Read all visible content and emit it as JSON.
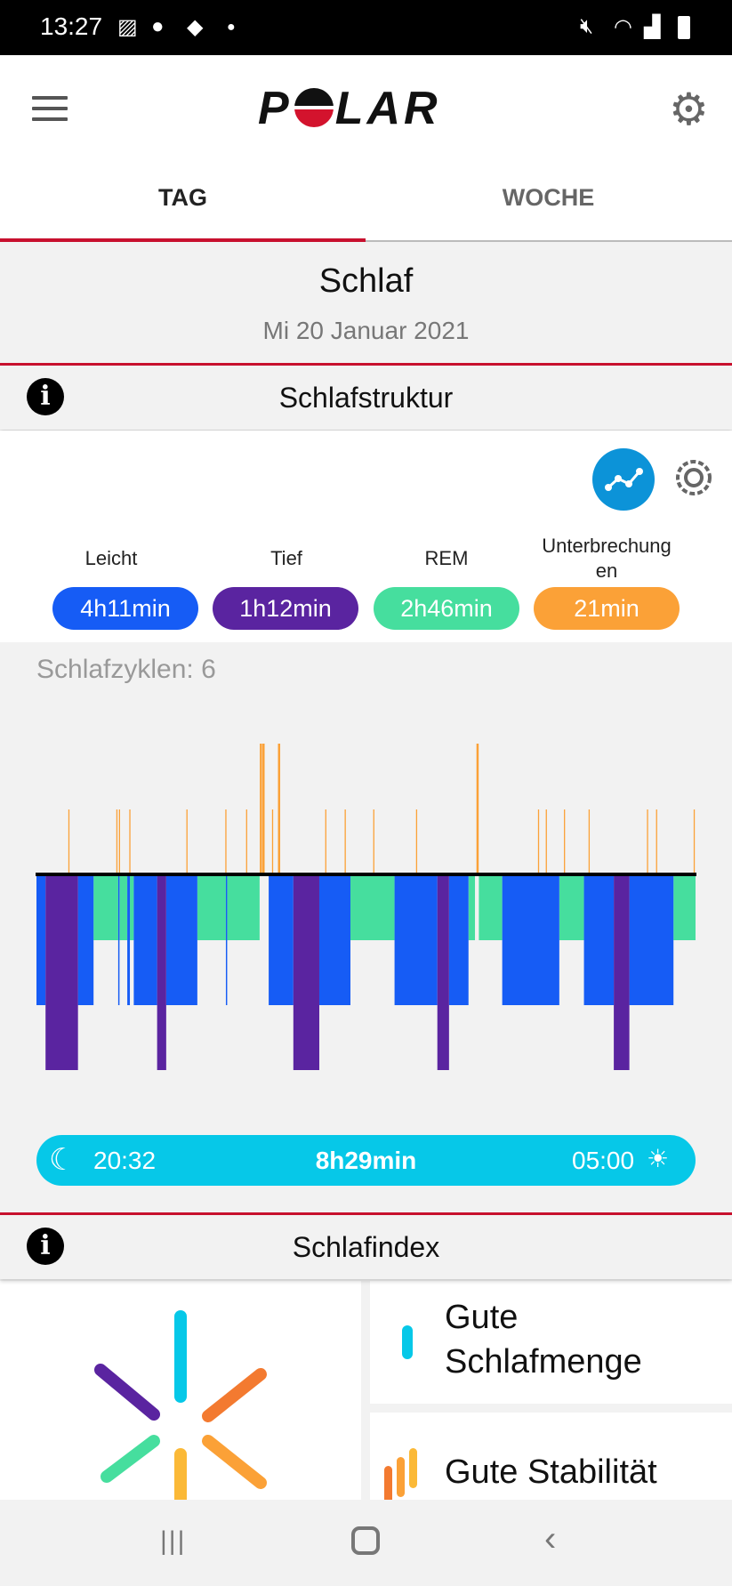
{
  "status_bar": {
    "time": "13:27",
    "icons": [
      "image-icon",
      "app-icon",
      "leaf-icon",
      "dot-icon",
      "mute-icon",
      "wifi-icon",
      "signal-icon",
      "battery-icon"
    ]
  },
  "header": {
    "logo": "POLAR",
    "menu_icon": "menu-icon",
    "settings_icon": "gear-icon"
  },
  "tabs": [
    {
      "label": "TAG",
      "active": true
    },
    {
      "label": "WOCHE",
      "active": false
    }
  ],
  "page": {
    "title": "Schlaf",
    "date": "Mi 20 Januar 2021"
  },
  "structure": {
    "title": "Schlafstruktur",
    "legend": [
      {
        "label": "Leicht",
        "value": "4h11min",
        "color": "#165cf5"
      },
      {
        "label": "Tief",
        "value": "1h12min",
        "color": "#5a24a0"
      },
      {
        "label": "REM",
        "value": "2h46min",
        "color": "#46de9e"
      },
      {
        "label": "Unterbrechungen",
        "value": "21min",
        "color": "#fba137"
      }
    ],
    "cycles": "Schlafzyklen: 6",
    "sleep_start": "20:32",
    "sleep_end": "05:00",
    "duration": "8h29min"
  },
  "chart_data": {
    "type": "hypnogram",
    "x_range": [
      "20:32",
      "05:00"
    ],
    "segments": [
      [
        "light",
        "20:32",
        "20:39"
      ],
      [
        "deep",
        "20:39",
        "21:04"
      ],
      [
        "light",
        "21:04",
        "21:16"
      ],
      [
        "rem",
        "21:16",
        "21:35"
      ],
      [
        "light",
        "21:35",
        "21:36"
      ],
      [
        "rem",
        "21:36",
        "21:42"
      ],
      [
        "light",
        "21:42",
        "21:44"
      ],
      [
        "rem",
        "21:44",
        "21:47"
      ],
      [
        "light",
        "21:47",
        "22:05"
      ],
      [
        "deep",
        "22:05",
        "22:12"
      ],
      [
        "light",
        "22:12",
        "22:36"
      ],
      [
        "rem",
        "22:36",
        "22:58"
      ],
      [
        "light",
        "22:58",
        "22:59"
      ],
      [
        "rem",
        "22:59",
        "23:24"
      ],
      [
        "light",
        "23:31",
        "23:50"
      ],
      [
        "deep",
        "23:50",
        "00:10"
      ],
      [
        "light",
        "00:10",
        "00:34"
      ],
      [
        "rem",
        "00:34",
        "01:08"
      ],
      [
        "light",
        "01:08",
        "01:41"
      ],
      [
        "deep",
        "01:41",
        "01:50"
      ],
      [
        "light",
        "01:50",
        "02:05"
      ],
      [
        "rem",
        "02:05",
        "02:10"
      ],
      [
        "rem",
        "02:13",
        "02:31"
      ],
      [
        "light",
        "02:31",
        "03:15"
      ],
      [
        "rem",
        "03:15",
        "03:34"
      ],
      [
        "light",
        "03:34",
        "03:57"
      ],
      [
        "deep",
        "03:57",
        "04:09"
      ],
      [
        "light",
        "04:09",
        "04:43"
      ],
      [
        "rem",
        "04:43",
        "05:00"
      ]
    ],
    "interruptions": [
      [
        "20:57",
        false
      ],
      [
        "21:34",
        false
      ],
      [
        "21:36",
        false
      ],
      [
        "21:44",
        false
      ],
      [
        "22:28",
        false
      ],
      [
        "22:58",
        false
      ],
      [
        "23:14",
        false
      ],
      [
        "23:25",
        true
      ],
      [
        "23:27",
        true
      ],
      [
        "23:34",
        false
      ],
      [
        "23:39",
        true
      ],
      [
        "00:15",
        false
      ],
      [
        "00:30",
        false
      ],
      [
        "00:52",
        false
      ],
      [
        "01:25",
        false
      ],
      [
        "02:12",
        true
      ],
      [
        "02:59",
        false
      ],
      [
        "03:05",
        false
      ],
      [
        "03:19",
        false
      ],
      [
        "03:38",
        false
      ],
      [
        "04:23",
        false
      ],
      [
        "04:30",
        false
      ],
      [
        "04:59",
        false
      ]
    ]
  },
  "index": {
    "title": "Schlafindex",
    "cards": [
      {
        "label": "Gute Schlafmenge",
        "color": "#06c8e8"
      },
      {
        "label": "Gute Stabilität",
        "color": "#fba137"
      }
    ]
  },
  "nav": {
    "icons": [
      "recent-apps-icon",
      "home-icon",
      "back-icon"
    ]
  }
}
